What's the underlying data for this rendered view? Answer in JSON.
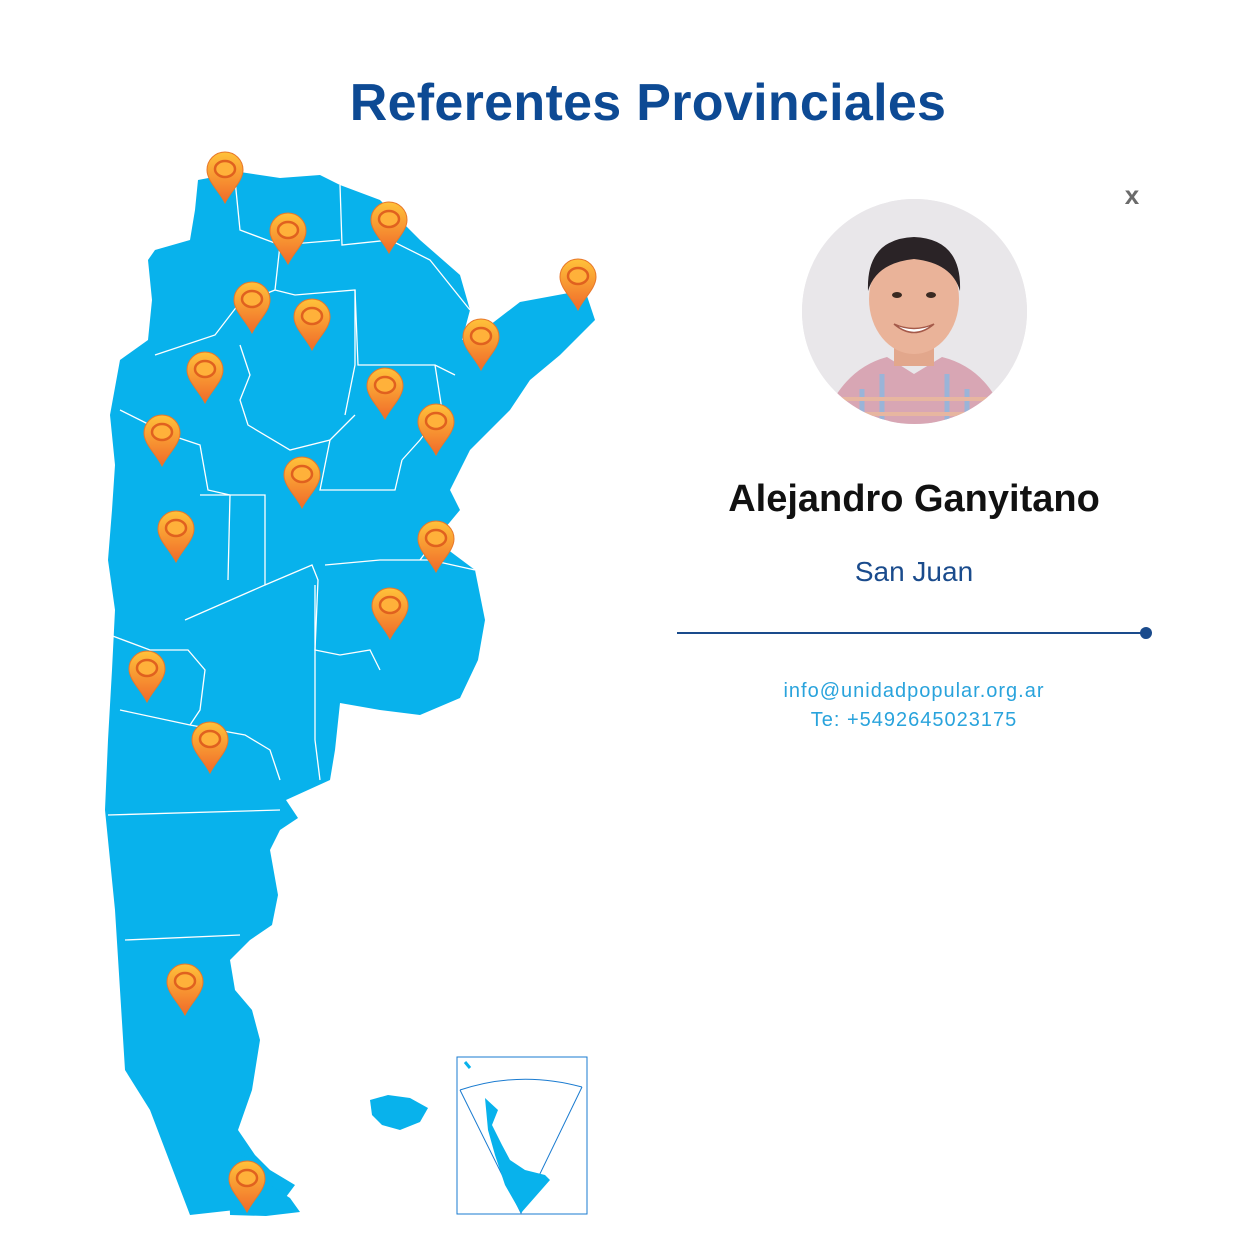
{
  "page": {
    "title": "Referentes Provinciales"
  },
  "map": {
    "fill_color": "#08b2ec",
    "border_color": "#ffffff",
    "pin_color": "#f58a2a",
    "pin_icon": "map-pin-icon"
  },
  "referente": {
    "name": "Alejandro Ganyitano",
    "province": "San Juan",
    "email": "info@unidadpopular.org.ar",
    "phone": "Te: +5492645023175"
  },
  "close_label": "x",
  "colors": {
    "title": "#0d4a94",
    "accent": "#1a4b8c",
    "link": "#29a3dc"
  }
}
